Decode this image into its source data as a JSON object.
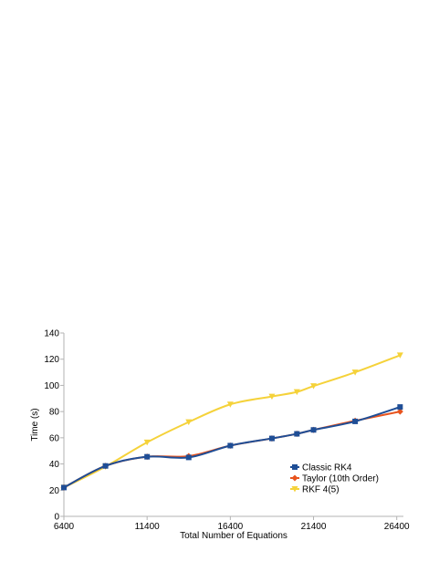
{
  "chart_data": {
    "type": "line",
    "title": "",
    "xlabel": "Total Number of Equations",
    "ylabel": "Time (s)",
    "xlim": [
      6400,
      26800
    ],
    "ylim": [
      0,
      140
    ],
    "x_ticks": [
      "6400",
      "11400",
      "16400",
      "21400",
      "26400"
    ],
    "y_ticks": [
      "0",
      "20",
      "40",
      "60",
      "80",
      "100",
      "120",
      "140"
    ],
    "grid": false,
    "smoothed": true,
    "legend_position": "bottom-right inside",
    "series": [
      {
        "name": "Classic RK4",
        "color": "#1f4e96",
        "marker": "square",
        "x": [
          6400,
          8900,
          11400,
          13900,
          16400,
          18900,
          20400,
          21400,
          23900,
          26600
        ],
        "y": [
          22,
          38.5,
          45.5,
          45,
          54,
          59.5,
          63,
          66,
          72.5,
          83.5
        ]
      },
      {
        "name": "Taylor (10th Order)",
        "color": "#e8541e",
        "marker": "diamond",
        "x": [
          6400,
          8900,
          11400,
          13900,
          16400,
          18900,
          20400,
          21400,
          23900,
          26600
        ],
        "y": [
          22,
          38.5,
          45.5,
          46,
          54,
          59.5,
          63,
          66,
          73,
          80
        ]
      },
      {
        "name": "RKF 4(5)",
        "color": "#f5d23a",
        "marker": "triangle-down",
        "x": [
          6400,
          8900,
          11400,
          13900,
          16400,
          18900,
          20400,
          21400,
          23900,
          26600
        ],
        "y": [
          22,
          38,
          56.5,
          72,
          85.5,
          91.5,
          95,
          99.5,
          110,
          123
        ]
      }
    ]
  }
}
